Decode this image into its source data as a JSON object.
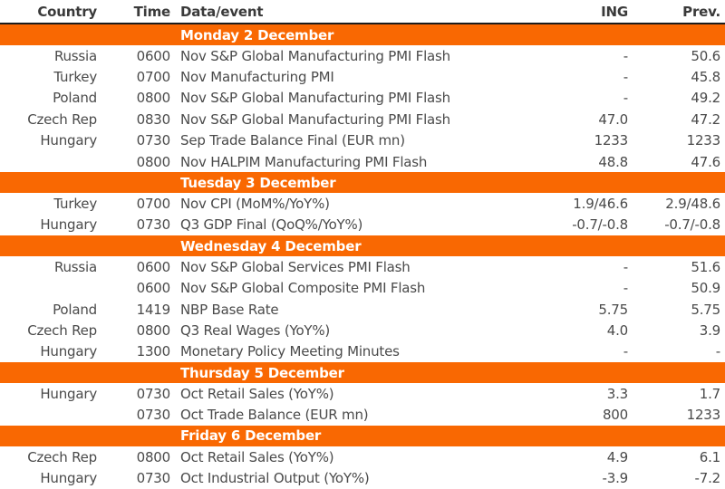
{
  "colors": {
    "band_orange": "#f96802",
    "band_text": "#ffffff",
    "header_rule": "#1c1c1c",
    "body_text": "#4a4a4a"
  },
  "chart_data": {
    "type": "table",
    "columns": [
      "Country",
      "Time",
      "Data/event",
      "ING",
      "Prev."
    ],
    "sections": [
      {
        "title": "Monday 2 December",
        "rows": [
          {
            "country": "Russia",
            "time": "0600",
            "event": "Nov S&P Global Manufacturing PMI Flash",
            "ing": "-",
            "prev": "50.6"
          },
          {
            "country": "Turkey",
            "time": "0700",
            "event": "Nov Manufacturing PMI",
            "ing": "-",
            "prev": "45.8"
          },
          {
            "country": "Poland",
            "time": "0800",
            "event": "Nov S&P Global Manufacturing PMI Flash",
            "ing": "-",
            "prev": "49.2"
          },
          {
            "country": "Czech Rep",
            "time": "0830",
            "event": "Nov S&P Global Manufacturing PMI Flash",
            "ing": "47.0",
            "prev": "47.2"
          },
          {
            "country": "Hungary",
            "time": "0730",
            "event": "Sep Trade Balance Final (EUR mn)",
            "ing": "1233",
            "prev": "1233"
          },
          {
            "country": "",
            "time": "0800",
            "event": "Nov HALPIM Manufacturing PMI Flash",
            "ing": "48.8",
            "prev": "47.6"
          }
        ]
      },
      {
        "title": "Tuesday 3 December",
        "rows": [
          {
            "country": "Turkey",
            "time": "0700",
            "event": "Nov CPI (MoM%/YoY%)",
            "ing": "1.9/46.6",
            "prev": "2.9/48.6"
          },
          {
            "country": "Hungary",
            "time": "0730",
            "event": "Q3 GDP Final (QoQ%/YoY%)",
            "ing": "-0.7/-0.8",
            "prev": "-0.7/-0.8"
          }
        ]
      },
      {
        "title": "Wednesday 4 December",
        "rows": [
          {
            "country": "Russia",
            "time": "0600",
            "event": "Nov S&P Global Services PMI Flash",
            "ing": "-",
            "prev": "51.6"
          },
          {
            "country": "",
            "time": "0600",
            "event": "Nov S&P Global Composite PMI Flash",
            "ing": "-",
            "prev": "50.9"
          },
          {
            "country": "Poland",
            "time": "1419",
            "event": "NBP Base Rate",
            "ing": "5.75",
            "prev": "5.75"
          },
          {
            "country": "Czech Rep",
            "time": "0800",
            "event": "Q3 Real Wages (YoY%)",
            "ing": "4.0",
            "prev": "3.9"
          },
          {
            "country": "Hungary",
            "time": "1300",
            "event": "Monetary Policy Meeting Minutes",
            "ing": "-",
            "prev": "-"
          }
        ]
      },
      {
        "title": "Thursday 5 December",
        "rows": [
          {
            "country": "Hungary",
            "time": "0730",
            "event": "Oct Retail Sales (YoY%)",
            "ing": "3.3",
            "prev": "1.7"
          },
          {
            "country": "",
            "time": "0730",
            "event": "Oct Trade Balance (EUR mn)",
            "ing": "800",
            "prev": "1233"
          }
        ]
      },
      {
        "title": "Friday 6 December",
        "rows": [
          {
            "country": "Czech Rep",
            "time": "0800",
            "event": "Oct Retail Sales (YoY%)",
            "ing": "4.9",
            "prev": "6.1"
          },
          {
            "country": "Hungary",
            "time": "0730",
            "event": "Oct Industrial Output (YoY%)",
            "ing": "-3.9",
            "prev": "-7.2"
          }
        ]
      }
    ]
  }
}
